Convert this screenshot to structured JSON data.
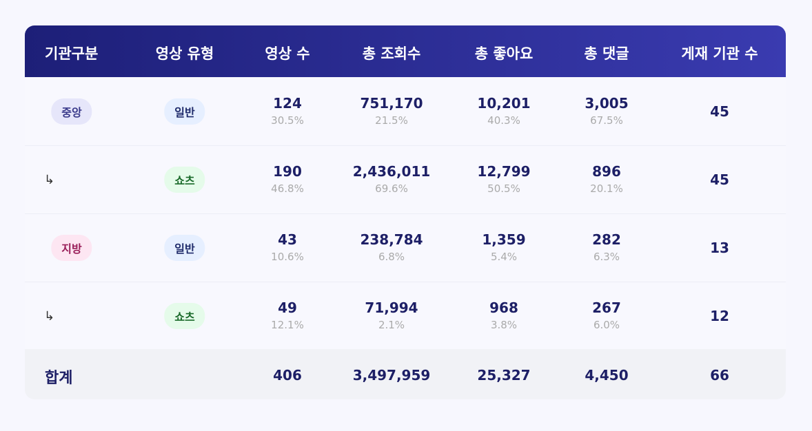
{
  "header": [
    "기관구분",
    "영상 유형",
    "영상 수",
    "총 조회수",
    "총 좋아요",
    "총 댓글",
    "게재 기관 수"
  ],
  "rows": [
    {
      "org": "중앙",
      "type": "일반",
      "metrics": [
        {
          "value": "124",
          "share": "30.5%"
        },
        {
          "value": "751,170",
          "share": "21.5%"
        },
        {
          "value": "10,201",
          "share": "40.3%"
        },
        {
          "value": "3,005",
          "share": "67.5%"
        }
      ],
      "institutions": "45"
    },
    {
      "org": "↳",
      "type": "쇼츠",
      "metrics": [
        {
          "value": "190",
          "share": "46.8%"
        },
        {
          "value": "2,436,011",
          "share": "69.6%"
        },
        {
          "value": "12,799",
          "share": "50.5%"
        },
        {
          "value": "896",
          "share": "20.1%"
        }
      ],
      "institutions": "45"
    },
    {
      "org": "지방",
      "type": "일반",
      "metrics": [
        {
          "value": "43",
          "share": "10.6%"
        },
        {
          "value": "238,784",
          "share": "6.8%"
        },
        {
          "value": "1,359",
          "share": "5.4%"
        },
        {
          "value": "282",
          "share": "6.3%"
        }
      ],
      "institutions": "13"
    },
    {
      "org": "↳",
      "type": "쇼츠",
      "metrics": [
        {
          "value": "49",
          "share": "12.1%"
        },
        {
          "value": "71,994",
          "share": "2.1%"
        },
        {
          "value": "968",
          "share": "3.8%"
        },
        {
          "value": "267",
          "share": "6.0%"
        }
      ],
      "institutions": "12"
    }
  ],
  "total": {
    "label": "합계",
    "metrics": [
      "406",
      "3,497,959",
      "25,327",
      "4,450"
    ],
    "institutions": "66"
  }
}
